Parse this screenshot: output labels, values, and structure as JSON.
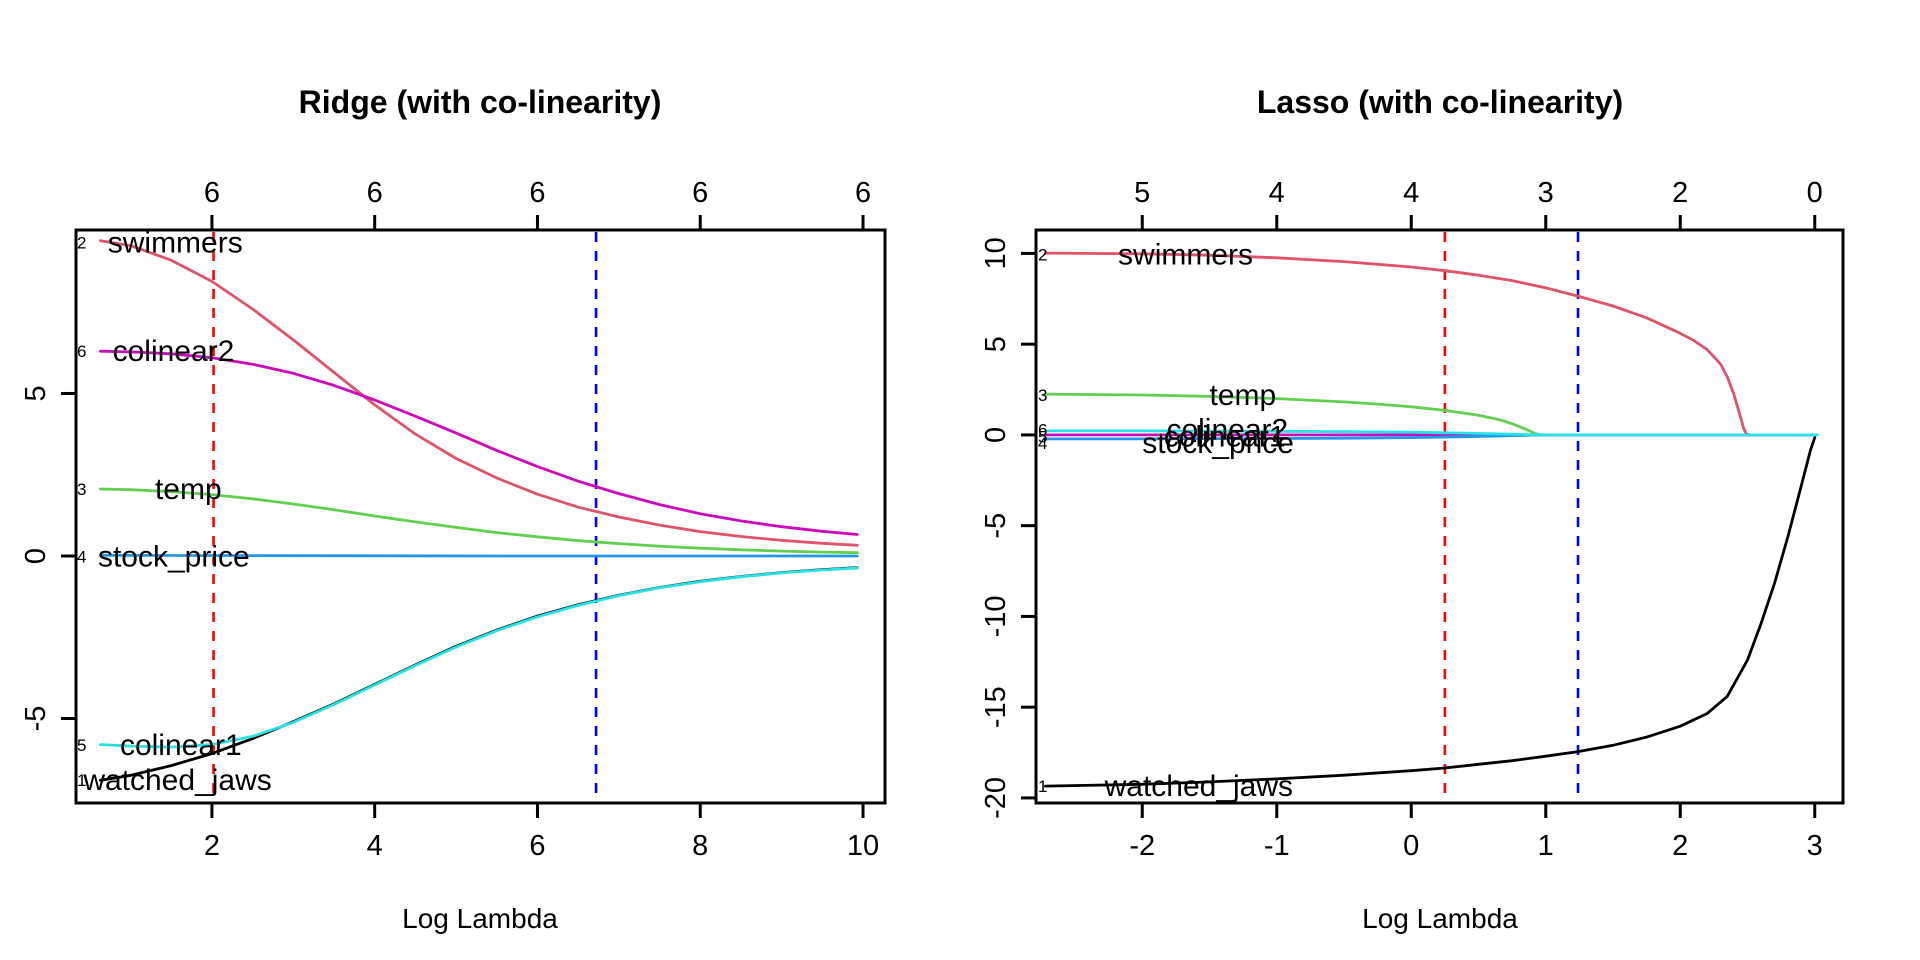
{
  "figure": {
    "background": "#ffffff"
  },
  "chart_data": [
    {
      "type": "line",
      "title": "Ridge (with co-linearity)",
      "xlabel": "Log Lambda",
      "x_ticks": [
        2,
        4,
        6,
        8,
        10
      ],
      "x_tick_labels": [
        "2",
        "4",
        "6",
        "8",
        "10"
      ],
      "top_axis_labels": [
        "6",
        "6",
        "6",
        "6",
        "6"
      ],
      "y_ticks": [
        -5,
        0,
        5
      ],
      "y_tick_labels": [
        "-5",
        "0",
        "5"
      ],
      "xlim": [
        0.33,
        10.27
      ],
      "ylim": [
        -7.6,
        10.03
      ],
      "grid": false,
      "vlines": [
        {
          "x": 2.02,
          "color": "#FF0000",
          "style": "dashed"
        },
        {
          "x": 6.72,
          "color": "#0000FF",
          "style": "dashed"
        }
      ],
      "series": [
        {
          "name": "watched_jaws",
          "number": "1",
          "color": "#000000",
          "number_x": 0.4,
          "label_x": 0.42,
          "label_y": -6.9,
          "points": [
            [
              0.63,
              -6.9
            ],
            [
              1,
              -6.75
            ],
            [
              1.5,
              -6.45
            ],
            [
              2,
              -6.08
            ],
            [
              2.5,
              -5.62
            ],
            [
              3,
              -5.1
            ],
            [
              3.5,
              -4.55
            ],
            [
              4,
              -3.95
            ],
            [
              4.5,
              -3.35
            ],
            [
              5,
              -2.78
            ],
            [
              5.5,
              -2.28
            ],
            [
              6,
              -1.85
            ],
            [
              6.5,
              -1.5
            ],
            [
              7,
              -1.21
            ],
            [
              7.5,
              -0.97
            ],
            [
              8,
              -0.78
            ],
            [
              8.5,
              -0.63
            ],
            [
              9,
              -0.51
            ],
            [
              9.5,
              -0.42
            ],
            [
              9.93,
              -0.36
            ]
          ]
        },
        {
          "name": "swimmers",
          "number": "2",
          "color": "#DF536B",
          "number_x": 0.4,
          "label_x": 0.72,
          "label_y": 9.65,
          "points": [
            [
              0.63,
              9.7
            ],
            [
              1,
              9.55
            ],
            [
              1.5,
              9.1
            ],
            [
              2,
              8.45
            ],
            [
              2.5,
              7.6
            ],
            [
              3,
              6.65
            ],
            [
              3.5,
              5.65
            ],
            [
              4,
              4.65
            ],
            [
              4.5,
              3.75
            ],
            [
              5,
              3.0
            ],
            [
              5.5,
              2.4
            ],
            [
              6,
              1.9
            ],
            [
              6.5,
              1.5
            ],
            [
              7,
              1.2
            ],
            [
              7.5,
              0.95
            ],
            [
              8,
              0.75
            ],
            [
              8.5,
              0.6
            ],
            [
              9,
              0.48
            ],
            [
              9.5,
              0.39
            ],
            [
              9.93,
              0.33
            ]
          ]
        },
        {
          "name": "temp",
          "number": "3",
          "color": "#61D04F",
          "number_x": 0.4,
          "label_x": 1.3,
          "label_y": 2.06,
          "points": [
            [
              0.63,
              2.06
            ],
            [
              1,
              2.04
            ],
            [
              1.5,
              1.98
            ],
            [
              2,
              1.89
            ],
            [
              2.5,
              1.76
            ],
            [
              3,
              1.6
            ],
            [
              3.5,
              1.42
            ],
            [
              4,
              1.23
            ],
            [
              4.5,
              1.05
            ],
            [
              5,
              0.88
            ],
            [
              5.5,
              0.72
            ],
            [
              6,
              0.59
            ],
            [
              6.5,
              0.47
            ],
            [
              7,
              0.38
            ],
            [
              7.5,
              0.3
            ],
            [
              8,
              0.24
            ],
            [
              8.5,
              0.19
            ],
            [
              9,
              0.15
            ],
            [
              9.5,
              0.12
            ],
            [
              9.93,
              0.1
            ]
          ]
        },
        {
          "name": "stock_price",
          "number": "4",
          "color": "#2297E6",
          "number_x": 0.4,
          "label_x": 0.6,
          "label_y": -0.02,
          "points": [
            [
              0.63,
              0.02
            ],
            [
              3,
              0.01
            ],
            [
              6,
              0.0
            ],
            [
              9.93,
              0.0
            ]
          ]
        },
        {
          "name": "colinear1",
          "number": "5",
          "color": "#28E2E5",
          "number_x": 0.4,
          "label_x": 0.87,
          "label_y": -5.82,
          "points": [
            [
              0.63,
              -5.8
            ],
            [
              1,
              -5.85
            ],
            [
              1.5,
              -5.88
            ],
            [
              2,
              -5.8
            ],
            [
              2.5,
              -5.55
            ],
            [
              3,
              -5.12
            ],
            [
              3.5,
              -4.57
            ],
            [
              4,
              -3.97
            ],
            [
              4.5,
              -3.37
            ],
            [
              5,
              -2.8
            ],
            [
              5.5,
              -2.3
            ],
            [
              6,
              -1.87
            ],
            [
              6.5,
              -1.52
            ],
            [
              7,
              -1.22
            ],
            [
              7.5,
              -0.98
            ],
            [
              8,
              -0.79
            ],
            [
              8.5,
              -0.64
            ],
            [
              9,
              -0.52
            ],
            [
              9.5,
              -0.43
            ],
            [
              9.93,
              -0.37
            ]
          ]
        },
        {
          "name": "colinear2",
          "number": "6",
          "color": "#CD0BBC",
          "number_x": 0.4,
          "label_x": 0.78,
          "label_y": 6.3,
          "points": [
            [
              0.63,
              6.3
            ],
            [
              1,
              6.28
            ],
            [
              1.5,
              6.22
            ],
            [
              2,
              6.1
            ],
            [
              2.5,
              5.9
            ],
            [
              3,
              5.62
            ],
            [
              3.5,
              5.25
            ],
            [
              4,
              4.8
            ],
            [
              4.5,
              4.3
            ],
            [
              5,
              3.78
            ],
            [
              5.5,
              3.25
            ],
            [
              6,
              2.75
            ],
            [
              6.5,
              2.3
            ],
            [
              7,
              1.92
            ],
            [
              7.5,
              1.58
            ],
            [
              8,
              1.3
            ],
            [
              8.5,
              1.08
            ],
            [
              9,
              0.9
            ],
            [
              9.5,
              0.76
            ],
            [
              9.93,
              0.66
            ]
          ]
        }
      ]
    },
    {
      "type": "line",
      "title": "Lasso (with co-linearity)",
      "xlabel": "Log Lambda",
      "x_ticks": [
        -2,
        -1,
        0,
        1,
        2,
        3
      ],
      "x_tick_labels": [
        "-2",
        "-1",
        "0",
        "1",
        "2",
        "3"
      ],
      "top_axis_labels": [
        "5",
        "4",
        "4",
        "3",
        "2",
        "0"
      ],
      "y_ticks": [
        -20,
        -15,
        -10,
        -5,
        0,
        5,
        10
      ],
      "y_tick_labels": [
        "-20",
        "-15",
        "-10",
        "-5",
        "0",
        "5",
        "10"
      ],
      "xlim": [
        -2.79,
        3.21
      ],
      "ylim": [
        -20.28,
        11.29
      ],
      "grid": false,
      "vlines": [
        {
          "x": 0.25,
          "color": "#FF0000",
          "style": "dashed"
        },
        {
          "x": 1.24,
          "color": "#0000FF",
          "style": "dashed"
        }
      ],
      "series": [
        {
          "name": "watched_jaws",
          "number": "1",
          "color": "#000000",
          "number_x": -2.74,
          "label_x": -2.28,
          "label_y": -19.35,
          "points": [
            [
              -2.72,
              -19.35
            ],
            [
              -2,
              -19.25
            ],
            [
              -1.5,
              -19.12
            ],
            [
              -1,
              -18.95
            ],
            [
              -0.5,
              -18.75
            ],
            [
              0,
              -18.5
            ],
            [
              0.25,
              -18.35
            ],
            [
              0.5,
              -18.15
            ],
            [
              0.75,
              -17.95
            ],
            [
              1,
              -17.7
            ],
            [
              1.24,
              -17.45
            ],
            [
              1.5,
              -17.1
            ],
            [
              1.75,
              -16.65
            ],
            [
              2,
              -16.05
            ],
            [
              2.2,
              -15.35
            ],
            [
              2.35,
              -14.4
            ],
            [
              2.5,
              -12.4
            ],
            [
              2.6,
              -10.4
            ],
            [
              2.7,
              -8.2
            ],
            [
              2.8,
              -5.6
            ],
            [
              2.9,
              -2.8
            ],
            [
              2.97,
              -0.8
            ],
            [
              3.0,
              -0.15
            ]
          ]
        },
        {
          "name": "swimmers",
          "number": "2",
          "color": "#DF536B",
          "number_x": -2.74,
          "label_x": -2.18,
          "label_y": 9.95,
          "points": [
            [
              -2.72,
              10.02
            ],
            [
              -2,
              9.98
            ],
            [
              -1.5,
              9.9
            ],
            [
              -1,
              9.76
            ],
            [
              -0.5,
              9.55
            ],
            [
              0,
              9.25
            ],
            [
              0.25,
              9.05
            ],
            [
              0.5,
              8.8
            ],
            [
              0.75,
              8.5
            ],
            [
              1,
              8.1
            ],
            [
              1.24,
              7.65
            ],
            [
              1.5,
              7.1
            ],
            [
              1.75,
              6.45
            ],
            [
              2,
              5.6
            ],
            [
              2.1,
              5.2
            ],
            [
              2.2,
              4.7
            ],
            [
              2.3,
              3.9
            ],
            [
              2.35,
              3.2
            ],
            [
              2.4,
              2.2
            ],
            [
              2.44,
              1.2
            ],
            [
              2.47,
              0.4
            ],
            [
              2.49,
              0.05
            ],
            [
              2.52,
              0
            ],
            [
              3.0,
              0
            ]
          ]
        },
        {
          "name": "temp",
          "number": "3",
          "color": "#61D04F",
          "number_x": -2.74,
          "label_x": -1.5,
          "label_y": 2.2,
          "points": [
            [
              -2.72,
              2.25
            ],
            [
              -2,
              2.2
            ],
            [
              -1.5,
              2.12
            ],
            [
              -1,
              2.0
            ],
            [
              -0.5,
              1.82
            ],
            [
              -0.25,
              1.7
            ],
            [
              0,
              1.55
            ],
            [
              0.25,
              1.35
            ],
            [
              0.5,
              1.08
            ],
            [
              0.65,
              0.85
            ],
            [
              0.75,
              0.62
            ],
            [
              0.85,
              0.32
            ],
            [
              0.92,
              0.08
            ],
            [
              0.96,
              0
            ],
            [
              3.0,
              0
            ]
          ]
        },
        {
          "name": "colinear2",
          "number": "6",
          "color": "#CD0BBC",
          "number_x": -2.74,
          "label_x": -1.82,
          "label_y": 0.3,
          "points": [
            [
              -2.72,
              0.0
            ],
            [
              3.0,
              0.0
            ]
          ]
        },
        {
          "name": "stock_price",
          "number": "4",
          "color": "#2297E6",
          "number_x": -2.74,
          "label_x": -2.0,
          "label_y": -0.45,
          "points": [
            [
              -2.72,
              -0.22
            ],
            [
              -2,
              -0.22
            ],
            [
              -1,
              -0.2
            ],
            [
              -0.5,
              -0.18
            ],
            [
              0,
              -0.15
            ],
            [
              0.4,
              -0.1
            ],
            [
              0.7,
              -0.05
            ],
            [
              0.9,
              -0.01
            ],
            [
              1.0,
              0
            ],
            [
              3.0,
              0
            ]
          ]
        },
        {
          "name": "colinear1",
          "number": "5",
          "color": "#28E2E5",
          "number_x": -2.74,
          "label_x": -1.84,
          "label_y": -0.1,
          "points": [
            [
              -2.72,
              0.22
            ],
            [
              -2,
              0.22
            ],
            [
              -1,
              0.2
            ],
            [
              -0.5,
              0.18
            ],
            [
              0,
              0.15
            ],
            [
              0.4,
              0.1
            ],
            [
              0.7,
              0.05
            ],
            [
              0.9,
              0.01
            ],
            [
              1.0,
              0
            ],
            [
              3.02,
              0
            ]
          ]
        }
      ]
    }
  ]
}
